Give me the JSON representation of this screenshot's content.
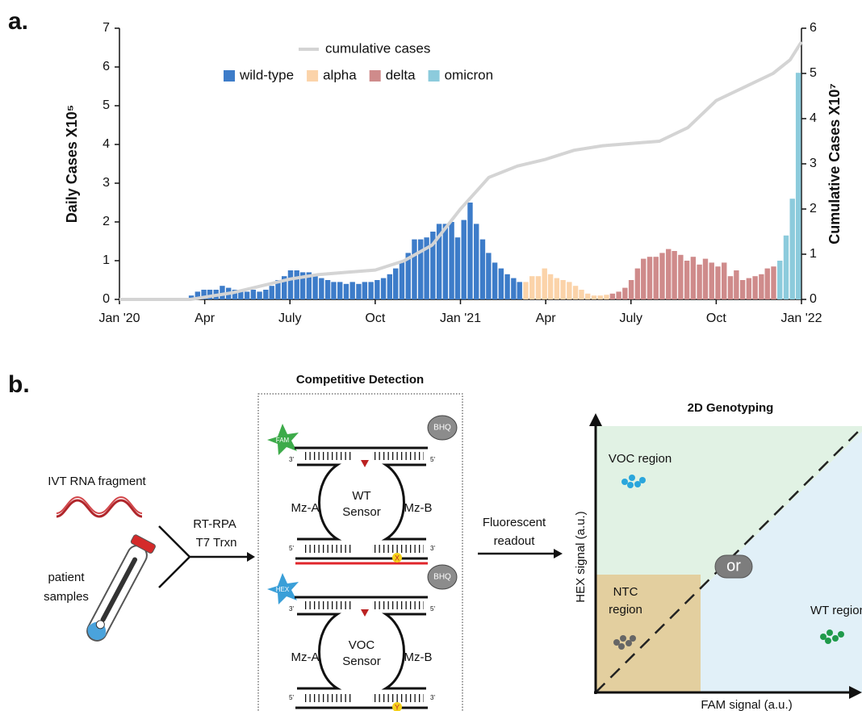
{
  "panel_label": "a.",
  "chart_data": {
    "type": "bar",
    "ylabel": "Daily Cases X10⁵",
    "y2label": "Cumulative Cases X10⁷",
    "xlim": [
      0,
      24
    ],
    "xticks": [
      {
        "value": 0,
        "label": "Jan '20"
      },
      {
        "value": 3,
        "label": "Apr"
      },
      {
        "value": 6,
        "label": "July"
      },
      {
        "value": 9,
        "label": "Oct"
      },
      {
        "value": 12,
        "label": "Jan '21"
      },
      {
        "value": 15,
        "label": "Apr"
      },
      {
        "value": 18,
        "label": "July"
      },
      {
        "value": 21,
        "label": "Oct"
      },
      {
        "value": 24,
        "label": "Jan '22"
      }
    ],
    "ylim": [
      0,
      7
    ],
    "yticks": [
      0,
      1,
      2,
      3,
      4,
      5,
      6,
      7
    ],
    "y2lim": [
      0,
      6
    ],
    "y2ticks": [
      0,
      1,
      2,
      3,
      4,
      5,
      6
    ],
    "series": [
      {
        "name": "wild-type",
        "color": "#3d7cc9",
        "x": [
          2.53,
          2.75,
          2.97,
          3.18,
          3.4,
          3.62,
          3.84,
          4.06,
          4.27,
          4.49,
          4.71,
          4.93,
          5.15,
          5.36,
          5.58,
          5.8,
          6.02,
          6.24,
          6.45,
          6.67,
          6.89,
          7.11,
          7.33,
          7.54,
          7.76,
          7.98,
          8.2,
          8.42,
          8.63,
          8.85,
          9.07,
          9.29,
          9.51,
          9.72,
          9.94,
          10.16,
          10.38,
          10.6,
          10.81,
          11.03,
          11.25,
          11.47,
          11.69,
          11.9,
          12.12,
          12.34,
          12.56,
          12.78,
          12.99,
          13.21,
          13.43,
          13.65,
          13.87,
          14.08
        ],
        "values": [
          0.1,
          0.2,
          0.25,
          0.25,
          0.25,
          0.35,
          0.3,
          0.25,
          0.2,
          0.2,
          0.25,
          0.2,
          0.25,
          0.35,
          0.5,
          0.6,
          0.75,
          0.75,
          0.7,
          0.7,
          0.6,
          0.55,
          0.5,
          0.45,
          0.45,
          0.4,
          0.45,
          0.4,
          0.45,
          0.45,
          0.5,
          0.55,
          0.65,
          0.8,
          1.0,
          1.2,
          1.55,
          1.55,
          1.6,
          1.75,
          1.95,
          1.95,
          2.0,
          1.6,
          2.05,
          2.5,
          1.95,
          1.55,
          1.2,
          0.95,
          0.8,
          0.65,
          0.55,
          0.45
        ]
      },
      {
        "name": "alpha",
        "color": "#fbd3a9",
        "x": [
          14.3,
          14.52,
          14.74,
          14.96,
          15.17,
          15.39,
          15.61,
          15.83,
          16.05,
          16.26,
          16.48,
          16.7,
          16.92,
          17.14
        ],
        "values": [
          0.45,
          0.6,
          0.6,
          0.8,
          0.65,
          0.55,
          0.5,
          0.45,
          0.35,
          0.25,
          0.15,
          0.1,
          0.1,
          0.12
        ]
      },
      {
        "name": "delta",
        "color": "#cf8b8b",
        "x": [
          17.35,
          17.57,
          17.79,
          18.01,
          18.23,
          18.44,
          18.66,
          18.88,
          19.1,
          19.32,
          19.53,
          19.75,
          19.97,
          20.19,
          20.41,
          20.62,
          20.84,
          21.06,
          21.28,
          21.5,
          21.71,
          21.93,
          22.15,
          22.37,
          22.59,
          22.8,
          23.02
        ],
        "values": [
          0.15,
          0.2,
          0.3,
          0.5,
          0.8,
          1.05,
          1.1,
          1.1,
          1.2,
          1.3,
          1.25,
          1.15,
          1.0,
          1.1,
          0.9,
          1.05,
          0.95,
          0.85,
          0.95,
          0.6,
          0.75,
          0.5,
          0.55,
          0.6,
          0.65,
          0.8,
          0.85
        ]
      },
      {
        "name": "omicron",
        "color": "#8ccbdc",
        "x": [
          23.24,
          23.46,
          23.68,
          23.89
        ],
        "values": [
          1.0,
          1.65,
          2.6,
          5.85
        ]
      },
      {
        "name": "cumulative cases",
        "type": "line",
        "axis": "y2",
        "color": "#d4d4d4",
        "x": [
          0,
          2.5,
          3,
          4,
          5,
          6,
          7,
          8,
          9,
          10,
          11,
          12,
          12.5,
          13,
          14,
          15,
          16,
          17,
          18,
          19,
          20,
          21,
          22,
          23,
          23.6,
          24
        ],
        "values": [
          0,
          0,
          0.05,
          0.15,
          0.3,
          0.45,
          0.55,
          0.6,
          0.65,
          0.85,
          1.2,
          2.0,
          2.35,
          2.7,
          2.95,
          3.1,
          3.3,
          3.4,
          3.45,
          3.5,
          3.8,
          4.4,
          4.7,
          5.0,
          5.3,
          5.7
        ]
      }
    ]
  },
  "diagram": {
    "label": "b.",
    "inputs": {
      "rna": "IVT RNA fragment",
      "patient": [
        "patient",
        "samples"
      ]
    },
    "amplification": [
      "RT-RPA",
      "T7 Trxn"
    ],
    "detection": {
      "title": "Competitive Detection",
      "sensors": [
        {
          "fluorophore": "FAM",
          "quencher": "BHQ",
          "arm_left": "Mz-A",
          "name": [
            "WT",
            "Sensor"
          ],
          "arm_right": "Mz-B",
          "mismatch": "X",
          "ends": [
            "3'",
            "5'",
            "5'",
            "3'"
          ]
        },
        {
          "fluorophore": "HEX",
          "quencher": "BHQ",
          "arm_left": "Mz-A",
          "name": [
            "VOC",
            "Sensor"
          ],
          "arm_right": "Mz-B",
          "mismatch": "Y",
          "ends": [
            "3'",
            "5'",
            "5'",
            "3'"
          ]
        }
      ]
    },
    "readout": [
      "Fluorescent",
      "readout"
    ],
    "genotyping": {
      "title": "2D Genotyping",
      "voc_region": "VOC region",
      "ntc_region": [
        "NTC",
        "region"
      ],
      "wt_region": "WT region",
      "or": "or",
      "xlabel": "FAM signal (a.u.)",
      "ylabel": "HEX signal (a.u.)"
    }
  }
}
